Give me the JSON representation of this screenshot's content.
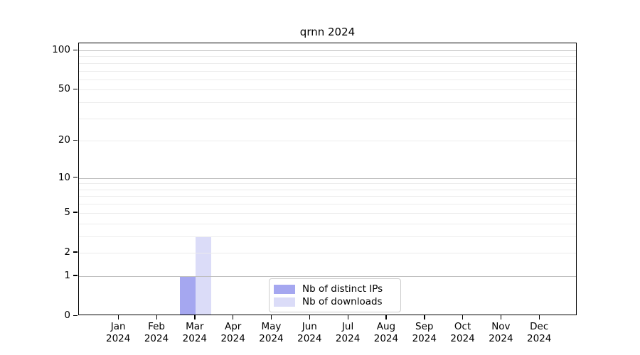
{
  "chart_data": {
    "type": "bar",
    "title": "qrnn 2024",
    "categories": [
      "Jan 2024",
      "Feb 2024",
      "Mar 2024",
      "Apr 2024",
      "May 2024",
      "Jun 2024",
      "Jul 2024",
      "Aug 2024",
      "Sep 2024",
      "Oct 2024",
      "Nov 2024",
      "Dec 2024"
    ],
    "series": [
      {
        "name": "Nb of distinct IPs",
        "color": "#a5a7f0",
        "values": [
          0,
          0,
          1,
          0,
          0,
          0,
          0,
          0,
          0,
          0,
          0,
          0
        ]
      },
      {
        "name": "Nb of downloads",
        "color": "#dbdcf8",
        "values": [
          0,
          0,
          3,
          0,
          0,
          0,
          0,
          0,
          0,
          0,
          0,
          0
        ]
      }
    ],
    "xlabel": "",
    "ylabel": "",
    "y_axis": {
      "scale": "log1p",
      "tick_values": [
        0,
        1,
        2,
        5,
        10,
        20,
        50,
        100
      ],
      "tick_labels": [
        "0",
        "1",
        "2",
        "5",
        "10",
        "20",
        "50",
        "100"
      ],
      "major_gridlines": [
        1,
        10,
        100
      ],
      "minor_gridlines": [
        2,
        3,
        4,
        5,
        6,
        7,
        8,
        9,
        20,
        30,
        40,
        50,
        60,
        70,
        80,
        90
      ],
      "ylim": [
        0,
        113
      ]
    },
    "legend": {
      "position": "lower center",
      "entries": [
        "Nb of distinct IPs",
        "Nb of downloads"
      ]
    },
    "grid": "both",
    "colors": {
      "grid_major": "#bdbdbd",
      "grid_minor": "#ececec",
      "axis": "#000000",
      "background": "#ffffff"
    }
  }
}
